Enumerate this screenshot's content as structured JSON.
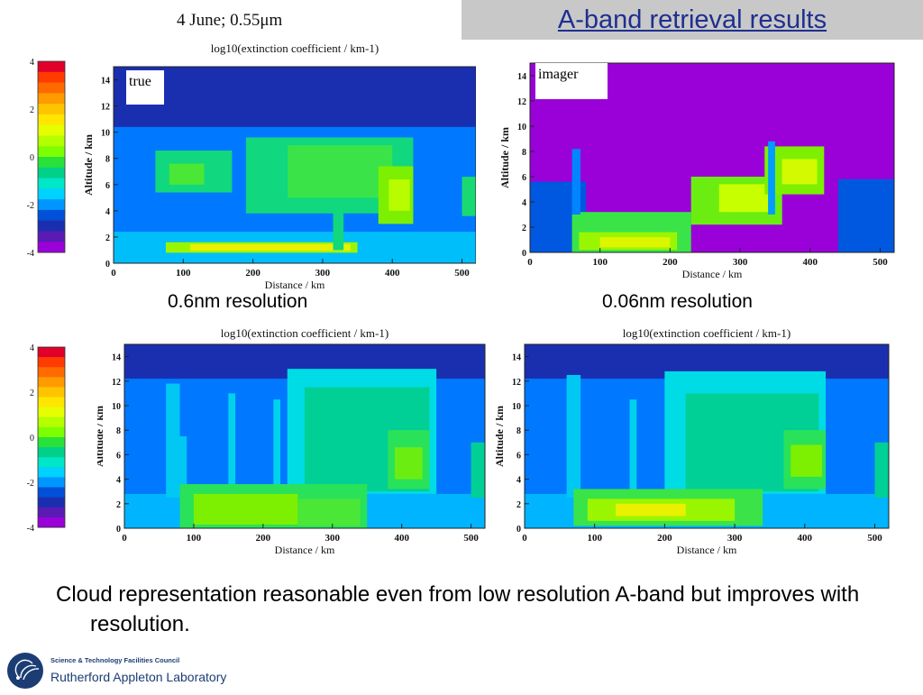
{
  "slide": {
    "title": "A-band retrieval results",
    "top_plot_title": "4 June; 0.55μm",
    "colorbar_ticks": [
      "4",
      "2",
      "0",
      "-2",
      "-4"
    ],
    "colorbar_colors": [
      "#e0002a",
      "#ff3b00",
      "#ff6a00",
      "#ff9a00",
      "#ffc400",
      "#ffe600",
      "#e6ff00",
      "#b4ff00",
      "#7cff00",
      "#2ae13a",
      "#00d088",
      "#00e6c8",
      "#00d2ff",
      "#0096ff",
      "#0050d8",
      "#1a2fb0",
      "#5a1ab4",
      "#9a00d8"
    ],
    "caption_left": "0.6nm resolution",
    "caption_right": "0.06nm resolution",
    "body_text": "Cloud representation reasonable even from low resolution A-band but improves with resolution.",
    "logo": {
      "org_small": "Science & Technology Facilities Council",
      "org_big": "Rutherford Appleton Laboratory"
    }
  },
  "chart_data": [
    {
      "type": "heatmap",
      "label": "true",
      "title": "log10(extinction coefficient / km-1)",
      "xlabel": "Distance / km",
      "ylabel": "Altitude / km",
      "xticks": [
        "0",
        "100",
        "200",
        "300",
        "400",
        "500"
      ],
      "yticks": [
        "0",
        "2",
        "4",
        "6",
        "8",
        "10",
        "12",
        "14"
      ],
      "xlim": [
        0,
        520
      ],
      "ylim": [
        0,
        15
      ],
      "colorbar": {
        "min": -4,
        "max": 4
      },
      "legend_placement": "left colorbar",
      "regions": [
        {
          "x0": 0,
          "x1": 520,
          "y0": 0,
          "y1": 15,
          "v": -2.6
        },
        {
          "x0": 0,
          "x1": 520,
          "y0": 0,
          "y1": 10.4,
          "v": -1.3
        },
        {
          "x0": 0,
          "x1": 520,
          "y0": 0,
          "y1": 2.4,
          "v": -0.7
        },
        {
          "x0": 60,
          "x1": 170,
          "y0": 5.4,
          "y1": 8.6,
          "v": 0.2
        },
        {
          "x0": 80,
          "x1": 130,
          "y0": 6.0,
          "y1": 7.6,
          "v": 0.7
        },
        {
          "x0": 190,
          "x1": 430,
          "y0": 3.8,
          "y1": 9.6,
          "v": 0.2
        },
        {
          "x0": 250,
          "x1": 400,
          "y0": 5.0,
          "y1": 9.0,
          "v": 0.6
        },
        {
          "x0": 380,
          "x1": 430,
          "y0": 3.0,
          "y1": 7.4,
          "v": 1.0
        },
        {
          "x0": 395,
          "x1": 425,
          "y0": 4.0,
          "y1": 6.4,
          "v": 1.4
        },
        {
          "x0": 500,
          "x1": 520,
          "y0": 3.6,
          "y1": 6.6,
          "v": 0.3
        },
        {
          "x0": 75,
          "x1": 350,
          "y0": 0.8,
          "y1": 1.6,
          "v": 1.2
        },
        {
          "x0": 110,
          "x1": 340,
          "y0": 0.95,
          "y1": 1.45,
          "v": 1.8
        },
        {
          "x0": 315,
          "x1": 330,
          "y0": 1.0,
          "y1": 4.2,
          "v": 0.2
        }
      ]
    },
    {
      "type": "heatmap",
      "label": "imager",
      "title": "",
      "xlabel": "Distance / km",
      "ylabel": "Altitude / km",
      "xticks": [
        "0",
        "100",
        "200",
        "300",
        "400",
        "500"
      ],
      "yticks": [
        "0",
        "2",
        "4",
        "6",
        "8",
        "10",
        "12",
        "14"
      ],
      "xlim": [
        0,
        520
      ],
      "ylim": [
        0,
        15
      ],
      "colorbar": {
        "min": -4,
        "max": 4
      },
      "regions": [
        {
          "x0": 0,
          "x1": 520,
          "y0": 0,
          "y1": 15,
          "v": -4
        },
        {
          "x0": 0,
          "x1": 80,
          "y0": 0,
          "y1": 5.6,
          "v": -1.7
        },
        {
          "x0": 440,
          "x1": 520,
          "y0": 0,
          "y1": 5.8,
          "v": -1.7
        },
        {
          "x0": 60,
          "x1": 230,
          "y0": 0,
          "y1": 3.2,
          "v": 0.6
        },
        {
          "x0": 70,
          "x1": 210,
          "y0": 0.2,
          "y1": 1.6,
          "v": 1.2
        },
        {
          "x0": 100,
          "x1": 200,
          "y0": 0.4,
          "y1": 1.2,
          "v": 1.7
        },
        {
          "x0": 230,
          "x1": 360,
          "y0": 2.2,
          "y1": 6.0,
          "v": 0.9
        },
        {
          "x0": 270,
          "x1": 340,
          "y0": 3.2,
          "y1": 5.4,
          "v": 1.5
        },
        {
          "x0": 335,
          "x1": 420,
          "y0": 4.6,
          "y1": 8.4,
          "v": 1.0
        },
        {
          "x0": 360,
          "x1": 410,
          "y0": 5.4,
          "y1": 7.4,
          "v": 1.6
        },
        {
          "x0": 60,
          "x1": 72,
          "y0": 3.0,
          "y1": 8.2,
          "v": -1.2
        },
        {
          "x0": 340,
          "x1": 350,
          "y0": 3.0,
          "y1": 8.8,
          "v": -1.0
        }
      ]
    },
    {
      "type": "heatmap",
      "label": "0.6nm resolution",
      "title": "log10(extinction coefficient / km-1)",
      "xlabel": "Distance / km",
      "ylabel": "Altitude / km",
      "xticks": [
        "0",
        "100",
        "200",
        "300",
        "400",
        "500"
      ],
      "yticks": [
        "0",
        "2",
        "4",
        "6",
        "8",
        "10",
        "12",
        "14"
      ],
      "xlim": [
        0,
        520
      ],
      "ylim": [
        0,
        15
      ],
      "colorbar": {
        "min": -4,
        "max": 4
      },
      "legend_placement": "left colorbar",
      "regions": [
        {
          "x0": 0,
          "x1": 520,
          "y0": 0,
          "y1": 15,
          "v": -2.6
        },
        {
          "x0": 0,
          "x1": 520,
          "y0": 0,
          "y1": 12.2,
          "v": -1.3
        },
        {
          "x0": 0,
          "x1": 520,
          "y0": 0,
          "y1": 2.8,
          "v": -0.8
        },
        {
          "x0": 60,
          "x1": 80,
          "y0": 2.5,
          "y1": 11.8,
          "v": -0.6
        },
        {
          "x0": 80,
          "x1": 90,
          "y0": 2.5,
          "y1": 7.5,
          "v": -0.6
        },
        {
          "x0": 150,
          "x1": 160,
          "y0": 3.0,
          "y1": 11.0,
          "v": -0.5
        },
        {
          "x0": 215,
          "x1": 225,
          "y0": 3.0,
          "y1": 10.5,
          "v": -0.5
        },
        {
          "x0": 235,
          "x1": 450,
          "y0": 2.8,
          "y1": 13.0,
          "v": -0.4
        },
        {
          "x0": 260,
          "x1": 440,
          "y0": 3.0,
          "y1": 11.5,
          "v": 0.0
        },
        {
          "x0": 380,
          "x1": 440,
          "y0": 3.2,
          "y1": 8.0,
          "v": 0.5
        },
        {
          "x0": 390,
          "x1": 430,
          "y0": 4.0,
          "y1": 6.6,
          "v": 0.9
        },
        {
          "x0": 500,
          "x1": 520,
          "y0": 2.5,
          "y1": 7.0,
          "v": 0.0
        },
        {
          "x0": 80,
          "x1": 350,
          "y0": 0,
          "y1": 3.6,
          "v": 0.5
        },
        {
          "x0": 100,
          "x1": 250,
          "y0": 0.3,
          "y1": 2.8,
          "v": 1.0
        },
        {
          "x0": 250,
          "x1": 340,
          "y0": 0.2,
          "y1": 2.4,
          "v": 0.7
        }
      ]
    },
    {
      "type": "heatmap",
      "label": "0.06nm resolution",
      "title": "log10(extinction coefficient / km-1)",
      "xlabel": "Distance / km",
      "ylabel": "Altitude / km",
      "xticks": [
        "0",
        "100",
        "200",
        "300",
        "400",
        "500"
      ],
      "yticks": [
        "0",
        "2",
        "4",
        "6",
        "8",
        "10",
        "12",
        "14"
      ],
      "xlim": [
        0,
        520
      ],
      "ylim": [
        0,
        15
      ],
      "colorbar": {
        "min": -4,
        "max": 4
      },
      "regions": [
        {
          "x0": 0,
          "x1": 520,
          "y0": 0,
          "y1": 15,
          "v": -2.6
        },
        {
          "x0": 0,
          "x1": 520,
          "y0": 0,
          "y1": 12.2,
          "v": -1.3
        },
        {
          "x0": 0,
          "x1": 520,
          "y0": 0,
          "y1": 2.8,
          "v": -0.8
        },
        {
          "x0": 60,
          "x1": 80,
          "y0": 2.5,
          "y1": 12.5,
          "v": -0.6
        },
        {
          "x0": 150,
          "x1": 160,
          "y0": 3.0,
          "y1": 10.5,
          "v": -0.5
        },
        {
          "x0": 200,
          "x1": 430,
          "y0": 2.8,
          "y1": 12.8,
          "v": -0.4
        },
        {
          "x0": 230,
          "x1": 420,
          "y0": 3.0,
          "y1": 11.0,
          "v": 0.0
        },
        {
          "x0": 370,
          "x1": 430,
          "y0": 3.2,
          "y1": 8.0,
          "v": 0.5
        },
        {
          "x0": 380,
          "x1": 425,
          "y0": 4.2,
          "y1": 6.8,
          "v": 1.0
        },
        {
          "x0": 500,
          "x1": 520,
          "y0": 2.5,
          "y1": 7.0,
          "v": 0.0
        },
        {
          "x0": 70,
          "x1": 340,
          "y0": 0.2,
          "y1": 3.2,
          "v": 0.6
        },
        {
          "x0": 90,
          "x1": 300,
          "y0": 0.6,
          "y1": 2.4,
          "v": 1.2
        },
        {
          "x0": 130,
          "x1": 230,
          "y0": 1.0,
          "y1": 2.0,
          "v": 1.8
        }
      ]
    }
  ]
}
